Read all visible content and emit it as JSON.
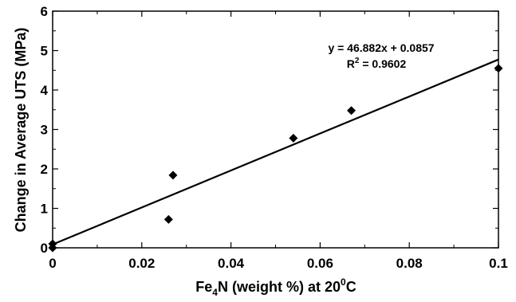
{
  "chart_data": {
    "type": "scatter",
    "title": "",
    "xlabel": {
      "base": "Fe",
      "sub": "4",
      "rest": "N (weight %) at 20",
      "sup": "0",
      "end": "C"
    },
    "ylabel": "Change in Average UTS (MPa)",
    "xlim": [
      0,
      0.1
    ],
    "ylim": [
      0,
      6
    ],
    "xticks": [
      0,
      0.02,
      0.04,
      0.06,
      0.08,
      0.1
    ],
    "xtick_labels": [
      "0",
      "0.02",
      "0.04",
      "0.06",
      "0.08",
      "0.1"
    ],
    "yticks": [
      0,
      1,
      2,
      3,
      4,
      5,
      6
    ],
    "ytick_labels": [
      "0",
      "1",
      "2",
      "3",
      "4",
      "5",
      "6"
    ],
    "grid": false,
    "legend": "none",
    "marker": "diamond",
    "series": [
      {
        "x": [
          0,
          0,
          0.026,
          0.027,
          0.054,
          0.067,
          0.1
        ],
        "y": [
          0,
          0.1,
          0.72,
          1.84,
          2.78,
          3.48,
          4.55
        ]
      }
    ],
    "trendline": {
      "slope": 46.882,
      "intercept": 0.0857,
      "x_range": [
        0,
        0.1
      ]
    },
    "annotations": {
      "equation": "y = 46.882x + 0.0857",
      "r2_base": "R",
      "r2_sup": "2",
      "r2_rest": " = 0.9602"
    },
    "colors": {
      "marker": "#000000",
      "line": "#000000",
      "axis": "#000000"
    }
  }
}
